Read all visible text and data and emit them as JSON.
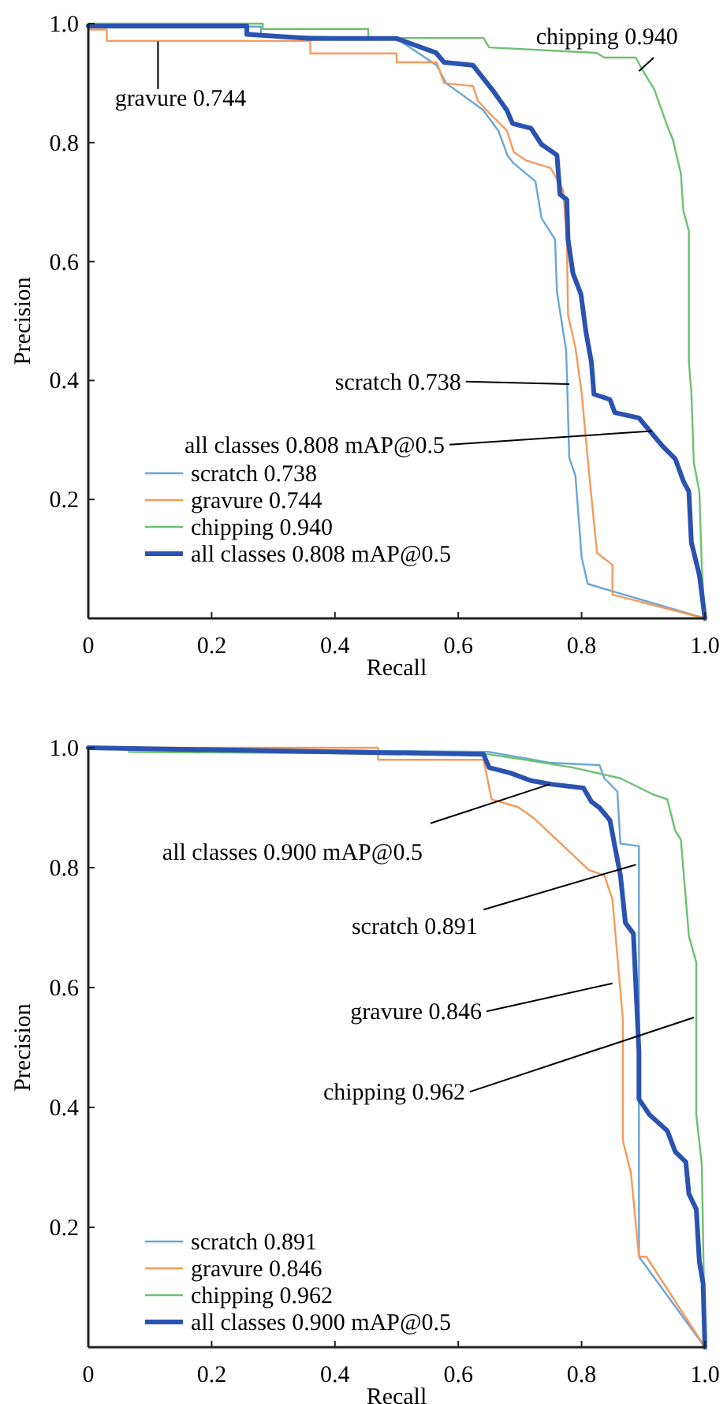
{
  "chart_data": [
    {
      "type": "line",
      "xlabel": "Recall",
      "ylabel": "Precision",
      "xlim": [
        0,
        1
      ],
      "ylim": [
        0,
        1
      ],
      "xticks": [
        0,
        0.2,
        0.4,
        0.6,
        0.8,
        {
          "value": 1,
          "label": "1.0"
        }
      ],
      "yticks": [
        0.2,
        0.4,
        0.6,
        0.8,
        {
          "value": 1,
          "label": "1.0"
        }
      ],
      "legend": "bottom left",
      "series": [
        {
          "name": "scratch 0.738",
          "color": "#6aa6d6",
          "x": [
            0,
            0.28,
            0.28,
            0.5,
            0.565,
            0.58,
            0.64,
            0.665,
            0.68,
            0.69,
            0.725,
            0.735,
            0.757,
            0.76,
            0.775,
            0.78,
            0.79,
            0.8,
            0.81,
            1.0
          ],
          "values": [
            0.995,
            0.995,
            0.98,
            0.975,
            0.93,
            0.9,
            0.855,
            0.82,
            0.778,
            0.765,
            0.735,
            0.673,
            0.637,
            0.549,
            0.45,
            0.27,
            0.24,
            0.103,
            0.058,
            0.0
          ]
        },
        {
          "name": "gravure 0.744",
          "color": "#f59a5a",
          "x": [
            0,
            0.03,
            0.03,
            0.36,
            0.36,
            0.5,
            0.5,
            0.565,
            0.577,
            0.624,
            0.632,
            0.65,
            0.679,
            0.69,
            0.71,
            0.75,
            0.77,
            0.776,
            0.778,
            0.79,
            0.8,
            0.812,
            0.825,
            0.85,
            0.85,
            1.0
          ],
          "values": [
            0.99,
            0.99,
            0.971,
            0.971,
            0.95,
            0.95,
            0.935,
            0.935,
            0.9,
            0.895,
            0.87,
            0.85,
            0.82,
            0.784,
            0.77,
            0.757,
            0.72,
            0.64,
            0.51,
            0.455,
            0.38,
            0.246,
            0.11,
            0.09,
            0.04,
            0.0
          ]
        },
        {
          "name": "chipping 0.940",
          "color": "#6cc070",
          "x": [
            0,
            0.283,
            0.283,
            0.454,
            0.454,
            0.641,
            0.65,
            0.824,
            0.837,
            0.888,
            0.897,
            0.918,
            0.939,
            0.948,
            0.961,
            0.965,
            0.974,
            0.974,
            0.978,
            0.982,
            0.991,
            0.995,
            1.0
          ],
          "values": [
            1.0,
            1.0,
            0.991,
            0.991,
            0.976,
            0.976,
            0.96,
            0.951,
            0.943,
            0.943,
            0.925,
            0.889,
            0.828,
            0.805,
            0.748,
            0.686,
            0.651,
            0.43,
            0.381,
            0.262,
            0.213,
            0.085,
            0.0
          ]
        },
        {
          "name": "all classes 0.808 mAP@0.5",
          "color": "#2a52b0",
          "x": [
            0,
            0.257,
            0.257,
            0.36,
            0.5,
            0.564,
            0.577,
            0.624,
            0.658,
            0.679,
            0.688,
            0.718,
            0.735,
            0.76,
            0.765,
            0.776,
            0.778,
            0.786,
            0.799,
            0.807,
            0.816,
            0.82,
            0.846,
            0.854,
            0.893,
            0.914,
            0.931,
            0.952,
            0.965,
            0.974,
            0.978,
            0.991,
            1.0
          ],
          "values": [
            0.996,
            0.996,
            0.982,
            0.975,
            0.975,
            0.951,
            0.935,
            0.93,
            0.885,
            0.854,
            0.832,
            0.824,
            0.797,
            0.779,
            0.713,
            0.704,
            0.637,
            0.58,
            0.545,
            0.482,
            0.43,
            0.377,
            0.368,
            0.346,
            0.337,
            0.311,
            0.29,
            0.268,
            0.231,
            0.213,
            0.128,
            0.073,
            0.0
          ]
        }
      ],
      "annotations": [
        {
          "text": "chipping 0.940",
          "x": 0.893,
          "y": 0.92
        },
        {
          "text": "gravure 0.744",
          "x": 0.113,
          "y": 0.97
        },
        {
          "text": "scratch 0.738",
          "x": 0.78,
          "y": 0.394
        },
        {
          "text": "all classes 0.808 mAP@0.5",
          "x": 0.914,
          "y": 0.315
        }
      ]
    },
    {
      "type": "line",
      "xlabel": "Recall",
      "ylabel": "Precision",
      "xlim": [
        0,
        1
      ],
      "ylim": [
        0,
        1
      ],
      "xticks": [
        0,
        0.2,
        0.4,
        0.6,
        0.8,
        {
          "value": 1,
          "label": "1.0"
        }
      ],
      "yticks": [
        0.2,
        0.4,
        0.6,
        0.8,
        {
          "value": 1,
          "label": "1.0"
        }
      ],
      "legend": "bottom left",
      "series": [
        {
          "name": "scratch 0.891",
          "color": "#6aa6d6",
          "x": [
            0,
            0.65,
            0.7,
            0.748,
            0.829,
            0.837,
            0.858,
            0.863,
            0.893,
            0.893,
            1.0
          ],
          "values": [
            1.0,
            0.993,
            0.984,
            0.975,
            0.971,
            0.949,
            0.927,
            0.84,
            0.836,
            0.151,
            0.0
          ]
        },
        {
          "name": "gravure 0.846",
          "color": "#f59a5a",
          "x": [
            0,
            0.47,
            0.47,
            0.641,
            0.654,
            0.697,
            0.722,
            0.812,
            0.837,
            0.85,
            0.867,
            0.867,
            0.88,
            0.893,
            0.905,
            1.0
          ],
          "values": [
            1.0,
            1.0,
            0.98,
            0.98,
            0.914,
            0.901,
            0.883,
            0.796,
            0.787,
            0.747,
            0.546,
            0.344,
            0.291,
            0.151,
            0.151,
            0.0
          ]
        },
        {
          "name": "chipping 0.962",
          "color": "#6cc070",
          "x": [
            0,
            0.066,
            0.066,
            0.65,
            0.709,
            0.786,
            0.863,
            0.914,
            0.939,
            0.952,
            0.961,
            0.974,
            0.986,
            0.986,
            0.995,
            1.0
          ],
          "values": [
            1.0,
            1.0,
            0.993,
            0.989,
            0.98,
            0.967,
            0.949,
            0.923,
            0.914,
            0.861,
            0.847,
            0.686,
            0.642,
            0.388,
            0.304,
            0.0
          ]
        },
        {
          "name": "all classes 0.900 mAP@0.5",
          "color": "#2a52b0",
          "x": [
            0,
            0.641,
            0.65,
            0.684,
            0.718,
            0.752,
            0.803,
            0.816,
            0.829,
            0.846,
            0.854,
            0.863,
            0.871,
            0.884,
            0.893,
            0.893,
            0.91,
            0.939,
            0.952,
            0.969,
            0.974,
            0.986,
            0.991,
            0.997,
            1.0
          ],
          "values": [
            1.0,
            0.989,
            0.967,
            0.958,
            0.945,
            0.939,
            0.933,
            0.91,
            0.9,
            0.879,
            0.835,
            0.787,
            0.708,
            0.69,
            0.493,
            0.414,
            0.388,
            0.361,
            0.326,
            0.309,
            0.256,
            0.23,
            0.142,
            0.107,
            0.0
          ]
        }
      ],
      "annotations": [
        {
          "text": "all classes 0.900 mAP@0.5",
          "x": 0.748,
          "y": 0.939
        },
        {
          "text": "scratch 0.891",
          "x": 0.888,
          "y": 0.805
        },
        {
          "text": "gravure 0.846",
          "x": 0.85,
          "y": 0.607
        },
        {
          "text": "chipping 0.962",
          "x": 0.982,
          "y": 0.55
        }
      ]
    }
  ]
}
